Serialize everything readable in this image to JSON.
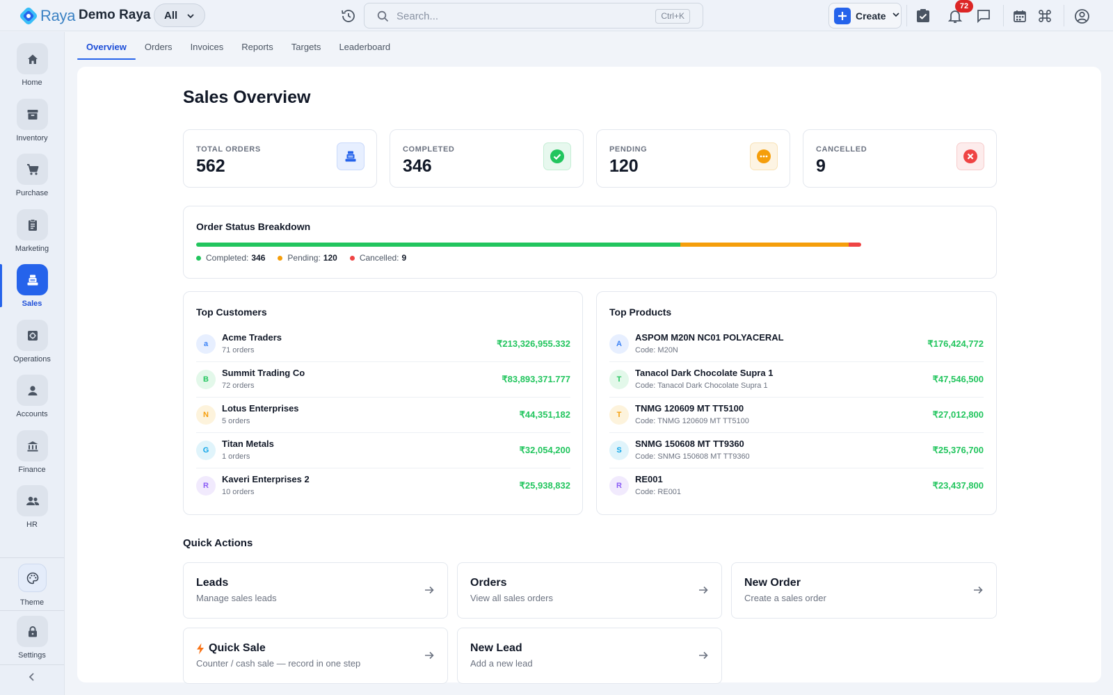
{
  "brand": {
    "logo_text": "Raya",
    "company": "Demo Raya",
    "scope_label": "All"
  },
  "search": {
    "placeholder": "Search...",
    "shortcut": "Ctrl+K"
  },
  "header": {
    "create_label": "Create",
    "notification_count": "72"
  },
  "sidebar": {
    "items": [
      {
        "label": "Home",
        "icon": "home-icon"
      },
      {
        "label": "Inventory",
        "icon": "archive-icon"
      },
      {
        "label": "Purchase",
        "icon": "cart-icon"
      },
      {
        "label": "Marketing",
        "icon": "clipboard-icon"
      },
      {
        "label": "Sales",
        "icon": "register-icon",
        "active": true
      },
      {
        "label": "Operations",
        "icon": "settings-icon"
      },
      {
        "label": "Accounts",
        "icon": "person-icon"
      },
      {
        "label": "Finance",
        "icon": "bank-icon"
      },
      {
        "label": "HR",
        "icon": "people-icon"
      }
    ],
    "theme_label": "Theme",
    "settings_label": "Settings"
  },
  "tabs": [
    "Overview",
    "Orders",
    "Invoices",
    "Reports",
    "Targets",
    "Leaderboard"
  ],
  "page": {
    "title": "Sales Overview"
  },
  "stats": [
    {
      "label": "TOTAL ORDERS",
      "value": "562",
      "icon": "register-icon",
      "color": "#2563eb"
    },
    {
      "label": "COMPLETED",
      "value": "346",
      "icon": "check-circle-icon",
      "color": "#22c55e"
    },
    {
      "label": "PENDING",
      "value": "120",
      "icon": "more-circle-icon",
      "color": "#f59e0b"
    },
    {
      "label": "CANCELLED",
      "value": "9",
      "icon": "x-circle-icon",
      "color": "#ef4444"
    }
  ],
  "breakdown": {
    "title": "Order Status Breakdown",
    "segments": [
      {
        "label": "Completed:",
        "value": "346",
        "count": 346,
        "color": "#22c55e"
      },
      {
        "label": "Pending:",
        "value": "120",
        "count": 120,
        "color": "#f59e0b"
      },
      {
        "label": "Cancelled:",
        "value": "9",
        "count": 9,
        "color": "#ef4444"
      }
    ]
  },
  "top_customers": {
    "title": "Top Customers",
    "rows": [
      {
        "initial": "a",
        "name": "Acme Traders",
        "sub": "71 orders",
        "amount": "₹213,326,955.332",
        "bg": "#e7efff",
        "fg": "#3b82f6"
      },
      {
        "initial": "B",
        "name": "Summit Trading Co",
        "sub": "72 orders",
        "amount": "₹83,893,371.777",
        "bg": "#e3f8ea",
        "fg": "#22c55e"
      },
      {
        "initial": "N",
        "name": "Lotus Enterprises",
        "sub": "5 orders",
        "amount": "₹44,351,182",
        "bg": "#fdf3dc",
        "fg": "#f59e0b"
      },
      {
        "initial": "G",
        "name": "Titan Metals",
        "sub": "1 orders",
        "amount": "₹32,054,200",
        "bg": "#e0f4fb",
        "fg": "#0ea5e9"
      },
      {
        "initial": "R",
        "name": "Kaveri Enterprises 2",
        "sub": "10 orders",
        "amount": "₹25,938,832",
        "bg": "#f1eafd",
        "fg": "#8b5cf6"
      }
    ]
  },
  "top_products": {
    "title": "Top Products",
    "rows": [
      {
        "initial": "A",
        "name": "ASPOM M20N NC01 POLYACERAL",
        "sub": "Code: M20N",
        "amount": "₹176,424,772",
        "bg": "#e7efff",
        "fg": "#3b82f6"
      },
      {
        "initial": "T",
        "name": "Tanacol Dark Chocolate Supra 1",
        "sub": "Code: Tanacol Dark Chocolate Supra 1",
        "amount": "₹47,546,500",
        "bg": "#e3f8ea",
        "fg": "#22c55e"
      },
      {
        "initial": "T",
        "name": "TNMG 120609 MT TT5100",
        "sub": "Code: TNMG 120609 MT TT5100",
        "amount": "₹27,012,800",
        "bg": "#fdf3dc",
        "fg": "#f59e0b"
      },
      {
        "initial": "S",
        "name": "SNMG 150608 MT TT9360",
        "sub": "Code: SNMG 150608 MT TT9360",
        "amount": "₹25,376,700",
        "bg": "#e0f4fb",
        "fg": "#0ea5e9"
      },
      {
        "initial": "R",
        "name": "RE001",
        "sub": "Code: RE001",
        "amount": "₹23,437,800",
        "bg": "#f1eafd",
        "fg": "#8b5cf6"
      }
    ]
  },
  "quick_actions": {
    "title": "Quick Actions",
    "items": [
      {
        "title": "Leads",
        "sub": "Manage sales leads"
      },
      {
        "title": "Orders",
        "sub": "View all sales orders"
      },
      {
        "title": "New Order",
        "sub": "Create a sales order"
      },
      {
        "title": "Quick Sale",
        "sub": "Counter / cash sale — record in one step",
        "icon": "bolt-icon"
      },
      {
        "title": "New Lead",
        "sub": "Add a new lead"
      }
    ]
  }
}
